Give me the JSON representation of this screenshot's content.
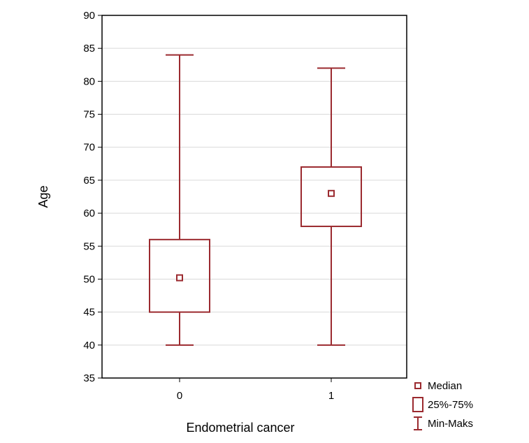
{
  "chart_data": {
    "type": "boxplot",
    "xlabel": "Endometrial cancer",
    "ylabel": "Age",
    "ylim": [
      35,
      90
    ],
    "yticks": [
      35,
      40,
      45,
      50,
      55,
      60,
      65,
      70,
      75,
      80,
      85,
      90
    ],
    "grid": "horizontal",
    "categories": [
      "0",
      "1"
    ],
    "boxes": [
      {
        "category": "0",
        "min": 40,
        "q1": 45,
        "median": 50.2,
        "q3": 56,
        "max": 84
      },
      {
        "category": "1",
        "min": 40,
        "q1": 58,
        "median": 63,
        "q3": 67,
        "max": 82
      }
    ],
    "legend": {
      "position": "bottom-right",
      "items": [
        {
          "symbol": "median-square",
          "label": "Median"
        },
        {
          "symbol": "box",
          "label": "25%-75%"
        },
        {
          "symbol": "whisker",
          "label": "Min-Maks"
        }
      ]
    },
    "colors": {
      "series": "#9b2a2f",
      "grid": "#d9d9d9",
      "axis": "#000000"
    }
  }
}
